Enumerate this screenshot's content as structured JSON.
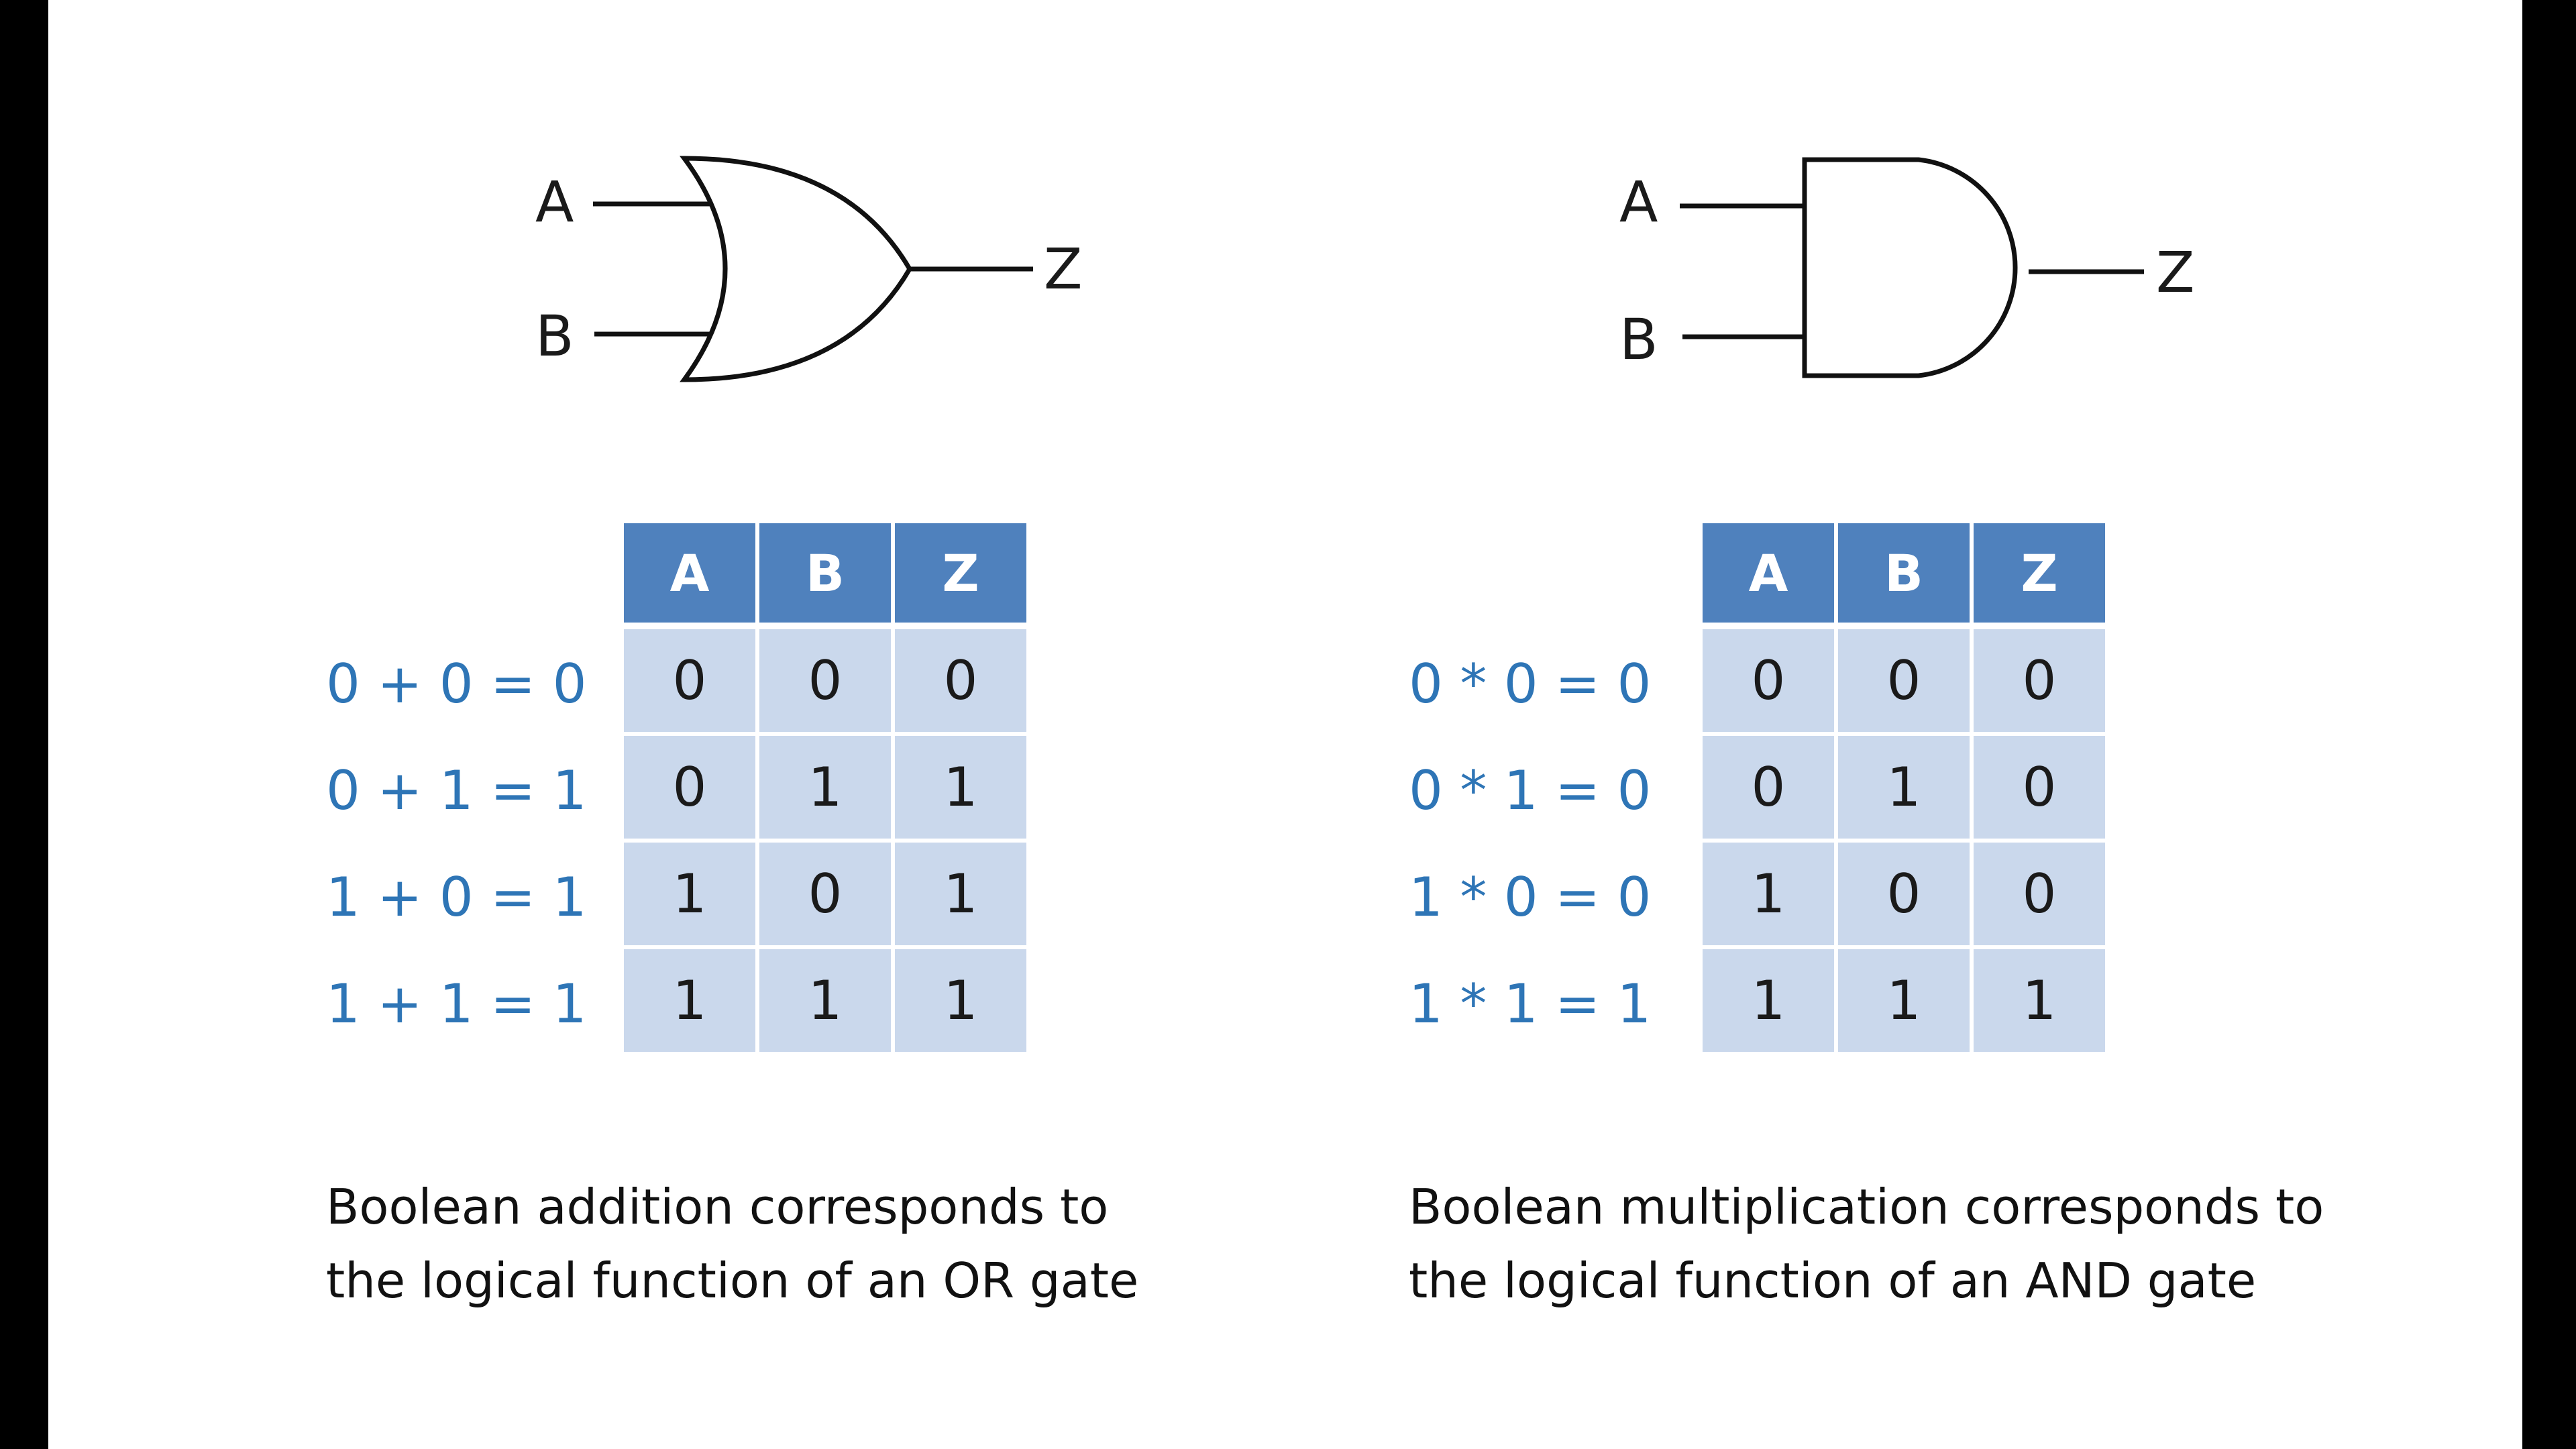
{
  "or_section": {
    "gate": {
      "input_a": "A",
      "input_b": "B",
      "output": "Z",
      "gate_type": "or-gate-icon"
    },
    "table": {
      "headers": [
        "A",
        "B",
        "Z"
      ],
      "rows": [
        [
          "0",
          "0",
          "0"
        ],
        [
          "0",
          "1",
          "1"
        ],
        [
          "1",
          "0",
          "1"
        ],
        [
          "1",
          "1",
          "1"
        ]
      ]
    },
    "equations": [
      "0 + 0 = 0",
      "0 + 1 = 1",
      "1 + 0 = 1",
      "1 + 1 = 1"
    ],
    "caption_line1": "Boolean addition corresponds to",
    "caption_line2": "the logical function of an OR gate"
  },
  "and_section": {
    "gate": {
      "input_a": "A",
      "input_b": "B",
      "output": "Z",
      "gate_type": "and-gate-icon"
    },
    "table": {
      "headers": [
        "A",
        "B",
        "Z"
      ],
      "rows": [
        [
          "0",
          "0",
          "0"
        ],
        [
          "0",
          "1",
          "0"
        ],
        [
          "1",
          "0",
          "0"
        ],
        [
          "1",
          "1",
          "1"
        ]
      ]
    },
    "equations": [
      "0 * 0 = 0",
      "0 * 1 = 0",
      "1 * 0 = 0",
      "1 * 1 = 1"
    ],
    "caption_line1": "Boolean multiplication corresponds to",
    "caption_line2": "the logical function of an AND gate"
  },
  "colors": {
    "header_fill": "#4f81bd",
    "cell_fill": "#cad8ec",
    "equation_text": "#2e75b6",
    "frame_bars": "#000000"
  }
}
